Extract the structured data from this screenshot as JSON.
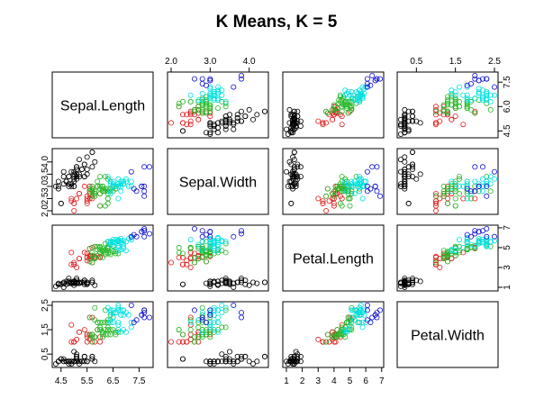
{
  "chart_data": {
    "type": "scatter",
    "title": "K Means, K = 5",
    "variables": [
      "Sepal.Length",
      "Sepal.Width",
      "Petal.Length",
      "Petal.Width"
    ],
    "ranges": {
      "Sepal.Length": [
        4.3,
        7.9
      ],
      "Sepal.Width": [
        2.0,
        4.4
      ],
      "Petal.Length": [
        1.0,
        6.9
      ],
      "Petal.Width": [
        0.1,
        2.5
      ]
    },
    "ticks": {
      "Sepal.Length": [
        "4.5",
        "5.5",
        "6.5",
        "7.5"
      ],
      "Sepal.Width": [
        "2.0",
        "3.0",
        "4.0"
      ],
      "Petal.Length": [
        "1",
        "2",
        "3",
        "4",
        "5",
        "6",
        "7"
      ],
      "Petal.Width": [
        "0.5",
        "1.5",
        "2.5"
      ]
    },
    "ytick_labels_panel": {
      "Sepal.Length": [
        "4.5",
        "6.0",
        "7.5"
      ],
      "Sepal.Width": [
        "2.0",
        "2.5",
        "3.0",
        "3.5",
        "4.0"
      ],
      "Petal.Length": [
        "1",
        "3",
        "5",
        "7"
      ],
      "Petal.Width": [
        "0.5",
        "1.5",
        "2.5"
      ]
    },
    "cluster_colors": [
      "#000000",
      "#df2020",
      "#28b828",
      "#00e0e0",
      "#1010d0"
    ],
    "series": [
      {
        "cluster": 1,
        "points": [
          [
            4.8,
            3.1,
            1.6,
            0.2
          ],
          [
            4.9,
            3.0,
            1.4,
            0.2
          ],
          [
            5.0,
            3.4,
            1.5,
            0.2
          ],
          [
            5.4,
            3.9,
            1.7,
            0.4
          ],
          [
            4.6,
            3.1,
            1.5,
            0.2
          ],
          [
            5.1,
            3.5,
            1.4,
            0.3
          ],
          [
            4.4,
            2.9,
            1.4,
            0.2
          ],
          [
            5.7,
            4.4,
            1.5,
            0.4
          ],
          [
            5.2,
            3.5,
            1.5,
            0.2
          ],
          [
            5.0,
            3.2,
            1.2,
            0.2
          ],
          [
            4.3,
            3.0,
            1.1,
            0.1
          ],
          [
            5.8,
            4.0,
            1.2,
            0.2
          ],
          [
            5.1,
            3.8,
            1.5,
            0.3
          ],
          [
            5.5,
            4.2,
            1.4,
            0.2
          ],
          [
            4.7,
            3.2,
            1.3,
            0.2
          ],
          [
            5.0,
            3.0,
            1.6,
            0.2
          ],
          [
            5.3,
            3.7,
            1.5,
            0.2
          ],
          [
            4.5,
            2.3,
            1.3,
            0.3
          ],
          [
            5.1,
            3.3,
            1.7,
            0.5
          ],
          [
            4.8,
            3.4,
            1.9,
            0.2
          ],
          [
            5.4,
            3.4,
            1.7,
            0.2
          ],
          [
            4.9,
            3.1,
            1.5,
            0.1
          ],
          [
            5.0,
            3.5,
            1.6,
            0.6
          ],
          [
            5.2,
            4.1,
            1.5,
            0.1
          ],
          [
            5.5,
            3.5,
            1.3,
            0.2
          ],
          [
            4.6,
            3.4,
            1.4,
            0.3
          ],
          [
            5.1,
            3.7,
            1.5,
            0.4
          ],
          [
            4.8,
            3.0,
            1.4,
            0.1
          ],
          [
            5.7,
            3.8,
            1.7,
            0.3
          ],
          [
            5.0,
            3.6,
            1.4,
            0.2
          ],
          [
            4.4,
            3.2,
            1.3,
            0.2
          ],
          [
            5.4,
            3.9,
            1.3,
            0.4
          ],
          [
            5.1,
            3.4,
            1.5,
            0.2
          ],
          [
            4.9,
            3.6,
            1.4,
            0.1
          ],
          [
            4.7,
            3.2,
            1.6,
            0.2
          ],
          [
            5.3,
            3.7,
            1.5,
            0.2
          ],
          [
            4.6,
            3.6,
            1.0,
            0.2
          ],
          [
            5.2,
            3.4,
            1.4,
            0.2
          ],
          [
            5.0,
            3.3,
            1.4,
            0.2
          ],
          [
            4.8,
            3.4,
            1.6,
            0.2
          ],
          [
            5.1,
            3.8,
            1.9,
            0.4
          ],
          [
            4.4,
            3.0,
            1.3,
            0.2
          ],
          [
            5.5,
            3.7,
            1.5,
            0.2
          ],
          [
            5.4,
            3.4,
            1.5,
            0.4
          ],
          [
            4.9,
            3.1,
            1.5,
            0.2
          ],
          [
            5.0,
            3.0,
            1.6,
            0.2
          ],
          [
            5.7,
            4.4,
            1.5,
            0.4
          ],
          [
            4.5,
            2.3,
            1.3,
            0.3
          ]
        ]
      },
      {
        "cluster": 2,
        "points": [
          [
            5.0,
            2.0,
            3.5,
            1.0
          ],
          [
            5.2,
            2.7,
            3.9,
            1.4
          ],
          [
            5.5,
            2.4,
            3.7,
            1.0
          ],
          [
            5.6,
            2.5,
            3.9,
            1.1
          ],
          [
            5.7,
            2.6,
            3.5,
            1.0
          ],
          [
            4.9,
            2.4,
            3.3,
            1.0
          ],
          [
            5.0,
            2.3,
            3.3,
            1.0
          ],
          [
            5.5,
            2.3,
            4.0,
            1.3
          ],
          [
            5.6,
            2.9,
            3.6,
            1.3
          ],
          [
            5.8,
            2.7,
            3.9,
            1.2
          ],
          [
            5.7,
            2.8,
            4.1,
            1.3
          ],
          [
            5.1,
            2.5,
            3.0,
            1.1
          ],
          [
            5.4,
            3.0,
            4.5,
            1.5
          ],
          [
            5.5,
            2.6,
            4.4,
            1.2
          ],
          [
            5.6,
            2.7,
            4.2,
            1.3
          ],
          [
            5.8,
            2.6,
            4.0,
            1.2
          ],
          [
            5.7,
            2.9,
            4.2,
            1.3
          ],
          [
            6.0,
            2.2,
            4.0,
            1.0
          ],
          [
            5.9,
            3.0,
            4.2,
            1.5
          ],
          [
            5.6,
            3.0,
            4.1,
            1.3
          ],
          [
            5.0,
            2.3,
            3.3,
            1.0
          ],
          [
            5.5,
            2.5,
            4.0,
            1.3
          ],
          [
            4.9,
            2.5,
            4.5,
            1.7
          ],
          [
            5.8,
            2.7,
            4.1,
            1.0
          ],
          [
            5.6,
            2.8,
            4.9,
            2.0
          ],
          [
            5.7,
            2.5,
            5.0,
            2.0
          ],
          [
            5.2,
            2.7,
            3.9,
            1.4
          ],
          [
            6.0,
            2.7,
            4.1,
            1.2
          ]
        ]
      },
      {
        "cluster": 3,
        "points": [
          [
            6.4,
            3.2,
            4.5,
            1.5
          ],
          [
            5.7,
            2.8,
            4.5,
            1.3
          ],
          [
            6.3,
            3.3,
            4.7,
            1.6
          ],
          [
            6.6,
            2.9,
            4.6,
            1.3
          ],
          [
            5.9,
            3.0,
            4.2,
            1.5
          ],
          [
            6.1,
            2.9,
            4.7,
            1.4
          ],
          [
            5.6,
            2.9,
            3.6,
            1.3
          ],
          [
            6.2,
            2.2,
            4.5,
            1.5
          ],
          [
            5.9,
            3.2,
            4.8,
            1.8
          ],
          [
            6.1,
            2.8,
            4.0,
            1.3
          ],
          [
            6.3,
            2.5,
            4.9,
            1.5
          ],
          [
            6.1,
            2.8,
            4.7,
            1.2
          ],
          [
            6.4,
            2.9,
            4.3,
            1.3
          ],
          [
            6.6,
            3.0,
            4.4,
            1.4
          ],
          [
            6.0,
            2.9,
            4.5,
            1.5
          ],
          [
            5.7,
            2.6,
            3.5,
            1.0
          ],
          [
            5.8,
            2.7,
            3.9,
            1.2
          ],
          [
            6.0,
            2.7,
            5.1,
            1.6
          ],
          [
            6.0,
            3.4,
            4.5,
            1.6
          ],
          [
            6.3,
            2.3,
            4.4,
            1.3
          ],
          [
            6.1,
            3.0,
            4.6,
            1.4
          ],
          [
            5.8,
            2.6,
            4.0,
            1.2
          ],
          [
            5.7,
            3.0,
            4.2,
            1.2
          ],
          [
            5.7,
            2.9,
            4.2,
            1.3
          ],
          [
            6.2,
            2.9,
            4.3,
            1.3
          ],
          [
            5.8,
            2.7,
            5.1,
            1.9
          ],
          [
            6.3,
            2.9,
            5.6,
            1.8
          ],
          [
            6.0,
            2.2,
            5.0,
            1.5
          ],
          [
            5.6,
            2.8,
            4.9,
            2.0
          ],
          [
            6.3,
            2.7,
            4.9,
            1.8
          ],
          [
            6.2,
            2.8,
            4.8,
            1.8
          ],
          [
            6.1,
            3.0,
            4.9,
            1.8
          ],
          [
            6.4,
            2.8,
            5.6,
            2.1
          ],
          [
            6.3,
            2.8,
            5.1,
            1.5
          ],
          [
            6.0,
            3.0,
            4.8,
            1.8
          ],
          [
            5.8,
            2.8,
            5.1,
            2.4
          ],
          [
            6.5,
            2.8,
            4.6,
            1.5
          ],
          [
            6.7,
            3.1,
            4.4,
            1.4
          ],
          [
            5.9,
            3.0,
            5.1,
            1.8
          ],
          [
            6.3,
            2.5,
            5.0,
            1.9
          ],
          [
            6.5,
            3.0,
            5.2,
            2.0
          ],
          [
            6.2,
            3.4,
            5.4,
            2.3
          ]
        ]
      },
      {
        "cluster": 4,
        "points": [
          [
            7.0,
            3.2,
            4.7,
            1.4
          ],
          [
            6.9,
            3.1,
            4.9,
            1.5
          ],
          [
            6.7,
            3.1,
            4.7,
            1.5
          ],
          [
            6.8,
            2.8,
            4.8,
            1.4
          ],
          [
            6.7,
            3.0,
            5.0,
            1.7
          ],
          [
            6.4,
            3.2,
            5.3,
            2.3
          ],
          [
            6.5,
            3.0,
            5.5,
            1.8
          ],
          [
            6.8,
            3.0,
            5.5,
            2.1
          ],
          [
            6.4,
            2.7,
            5.3,
            1.9
          ],
          [
            6.5,
            3.2,
            5.1,
            2.0
          ],
          [
            6.9,
            3.1,
            5.4,
            2.1
          ],
          [
            6.7,
            3.1,
            5.6,
            2.4
          ],
          [
            6.9,
            3.1,
            5.1,
            2.3
          ],
          [
            6.8,
            3.2,
            5.9,
            2.3
          ],
          [
            6.7,
            3.3,
            5.7,
            2.5
          ],
          [
            6.7,
            3.0,
            5.2,
            2.3
          ],
          [
            6.5,
            3.0,
            5.8,
            2.2
          ],
          [
            6.4,
            3.1,
            5.5,
            1.8
          ],
          [
            7.1,
            3.0,
            5.9,
            2.1
          ],
          [
            7.2,
            3.0,
            5.8,
            1.6
          ],
          [
            6.4,
            2.8,
            5.6,
            2.2
          ],
          [
            6.7,
            2.5,
            5.8,
            1.8
          ],
          [
            7.2,
            3.2,
            6.0,
            1.8
          ],
          [
            6.9,
            3.2,
            5.7,
            2.3
          ],
          [
            6.6,
            3.0,
            5.5,
            2.2
          ],
          [
            7.0,
            3.3,
            5.6,
            2.2
          ],
          [
            6.5,
            3.1,
            5.6,
            2.3
          ],
          [
            6.3,
            3.4,
            5.6,
            2.4
          ],
          [
            6.6,
            3.0,
            5.8,
            2.2
          ],
          [
            6.8,
            3.1,
            5.7,
            2.1
          ]
        ]
      },
      {
        "cluster": 5,
        "points": [
          [
            7.6,
            3.0,
            6.6,
            2.1
          ],
          [
            7.3,
            2.9,
            6.3,
            1.8
          ],
          [
            7.7,
            3.8,
            6.7,
            2.2
          ],
          [
            7.7,
            2.6,
            6.9,
            2.3
          ],
          [
            7.7,
            2.8,
            6.7,
            2.0
          ],
          [
            7.9,
            3.8,
            6.4,
            2.0
          ],
          [
            7.4,
            2.8,
            6.1,
            1.9
          ],
          [
            7.2,
            3.6,
            6.1,
            2.5
          ],
          [
            7.7,
            3.0,
            6.1,
            2.3
          ],
          [
            7.6,
            3.0,
            6.6,
            2.1
          ]
        ]
      }
    ]
  }
}
